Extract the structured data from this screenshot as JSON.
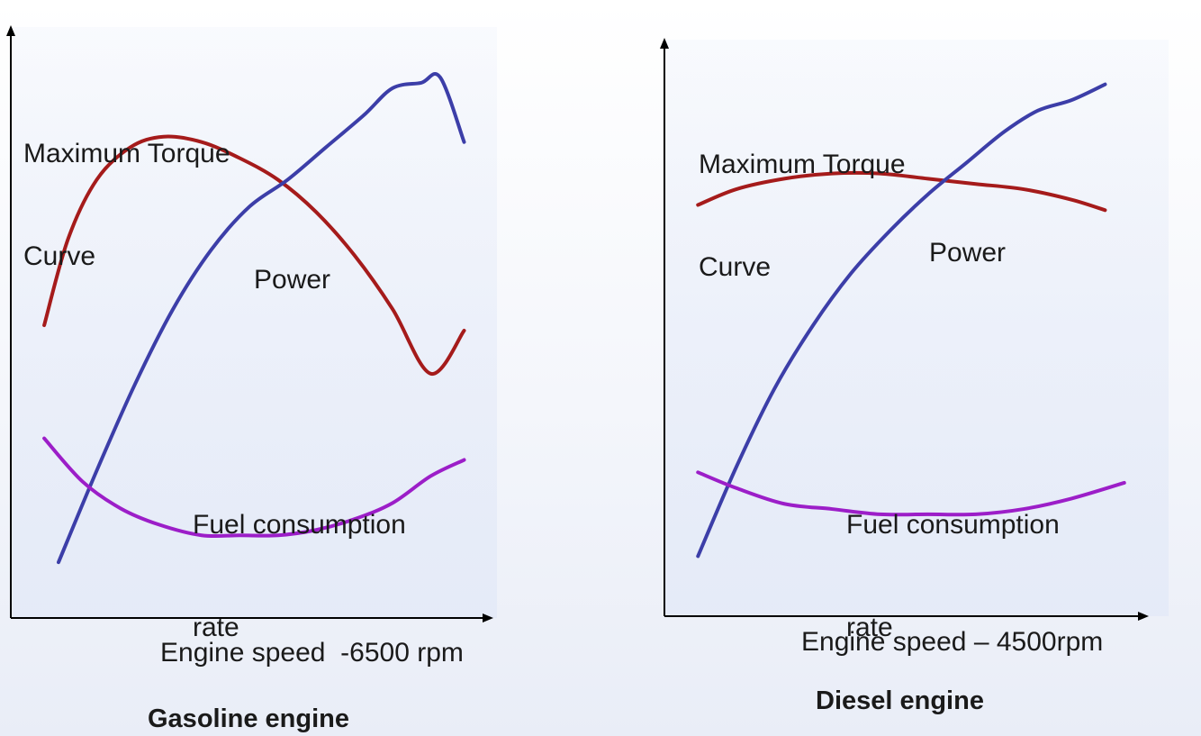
{
  "chart_data": [
    {
      "type": "line",
      "title": "Gasoline engine",
      "xlabel": "Engine speed  -6500 rpm",
      "ylabel": "",
      "xlim": [
        0,
        100
      ],
      "ylim": [
        0,
        100
      ],
      "grid": false,
      "annotations": {
        "torque_line1": "Maximum Torque",
        "torque_line2": "Curve",
        "power": "Power",
        "fuel_line1": "Fuel consumption",
        "fuel_line2": "rate"
      },
      "series": [
        {
          "name": "Maximum Torque Curve",
          "color": "#a51b1b",
          "x": [
            7,
            12,
            18,
            25,
            32,
            40,
            48,
            56,
            64,
            72,
            80,
            88,
            95
          ],
          "y": [
            51,
            67,
            78,
            84,
            86,
            85,
            82,
            78,
            72,
            64,
            54,
            42,
            50
          ]
        },
        {
          "name": "Power",
          "color": "#3c3ea8",
          "x": [
            10,
            18,
            26,
            34,
            42,
            50,
            58,
            66,
            74,
            80,
            86,
            90,
            95
          ],
          "y": [
            7,
            24,
            40,
            54,
            65,
            73,
            78,
            84,
            90,
            95,
            96,
            97,
            85
          ]
        },
        {
          "name": "Fuel consumption rate",
          "color": "#9c1ec8",
          "x": [
            7,
            15,
            23,
            31,
            40,
            48,
            56,
            64,
            72,
            80,
            88,
            95
          ],
          "y": [
            30,
            22,
            17,
            14,
            12,
            12,
            12,
            13,
            15,
            18,
            23,
            26
          ]
        }
      ]
    },
    {
      "type": "line",
      "title": "Diesel engine",
      "xlabel": "Engine speed – 4500rpm",
      "ylabel": "",
      "xlim": [
        0,
        100
      ],
      "ylim": [
        0,
        100
      ],
      "grid": false,
      "annotations": {
        "torque_line1": "Maximum Torque",
        "torque_line2": "Curve",
        "power": "Power",
        "fuel_line1": "Fuel consumption",
        "fuel_line2": "rate"
      },
      "series": [
        {
          "name": "Maximum Torque Curve",
          "color": "#a51b1b",
          "x": [
            7,
            15,
            25,
            35,
            45,
            55,
            65,
            75,
            85,
            92
          ],
          "y": [
            75,
            78,
            80,
            81,
            81,
            80,
            79,
            78,
            76,
            74
          ]
        },
        {
          "name": "Power",
          "color": "#3c3ea8",
          "x": [
            7,
            15,
            23,
            31,
            39,
            47,
            55,
            63,
            71,
            78,
            85,
            92
          ],
          "y": [
            8,
            25,
            40,
            52,
            62,
            70,
            77,
            83,
            89,
            93,
            95,
            98
          ]
        },
        {
          "name": "Fuel consumption rate",
          "color": "#9c1ec8",
          "x": [
            7,
            15,
            25,
            35,
            45,
            55,
            65,
            75,
            85,
            96
          ],
          "y": [
            24,
            21,
            18,
            17,
            16,
            16,
            16,
            17,
            19,
            22
          ]
        }
      ]
    }
  ]
}
